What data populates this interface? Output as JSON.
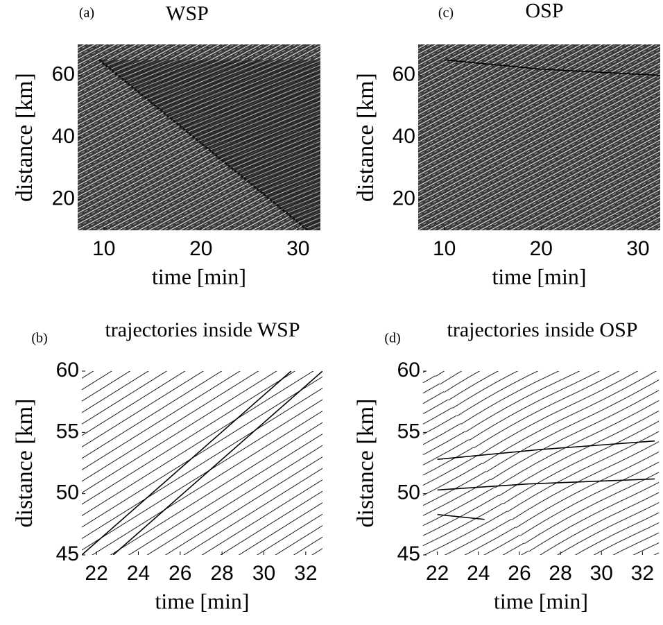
{
  "chart_data": [
    {
      "type": "line",
      "label": "(a)",
      "title": "WSP",
      "xlabel": "time [min]",
      "ylabel": "distance [km]",
      "xlim": [
        7.3,
        32.3
      ],
      "ylim": [
        10,
        70
      ],
      "xticks": [
        10,
        20,
        30
      ],
      "yticks": [
        20,
        40,
        60
      ],
      "series": [
        {
          "color": "#111111",
          "x": [
            9.5,
            31
          ],
          "values": [
            65,
            10
          ]
        }
      ]
    },
    {
      "type": "line",
      "label": "(b)",
      "title": "trajectories inside WSP",
      "xlabel": "time [min]",
      "ylabel": "distance [km]",
      "xlim": [
        21.3,
        32.8
      ],
      "ylim": [
        45,
        60
      ],
      "xticks": [
        22,
        24,
        26,
        28,
        30,
        32
      ],
      "yticks": [
        45,
        50,
        55,
        60
      ],
      "series": [
        {
          "color": "#000000",
          "x": [
            21.3,
            31.3
          ],
          "values": [
            45,
            60
          ]
        },
        {
          "color": "#000000",
          "x": [
            22.8,
            32.8
          ],
          "values": [
            45,
            60
          ]
        }
      ]
    },
    {
      "type": "line",
      "label": "(c)",
      "title": "OSP",
      "xlabel": "time [min]",
      "ylabel": "distance [km]",
      "xlim": [
        7.3,
        32.3
      ],
      "ylim": [
        10,
        70
      ],
      "xticks": [
        10,
        20,
        30
      ],
      "yticks": [
        20,
        40,
        60
      ],
      "series": [
        {
          "color": "#000000",
          "x": [
            10,
            20,
            32.3
          ],
          "values": [
            65,
            62,
            60
          ]
        }
      ]
    },
    {
      "type": "line",
      "label": "(d)",
      "title": "trajectories inside OSP",
      "xlabel": "time [min]",
      "ylabel": "distance [km]",
      "xlim": [
        21.3,
        32.8
      ],
      "ylim": [
        45,
        60
      ],
      "xticks": [
        22,
        24,
        26,
        28,
        30,
        32
      ],
      "yticks": [
        45,
        50,
        55,
        60
      ],
      "series": [
        {
          "color": "#000000",
          "x": [
            22,
            24.3
          ],
          "values": [
            48.3,
            47.9
          ]
        },
        {
          "color": "#000000",
          "x": [
            22,
            26.5,
            32.6
          ],
          "values": [
            50.3,
            50.8,
            51.2
          ]
        },
        {
          "color": "#000000",
          "x": [
            22,
            27,
            32.6
          ],
          "values": [
            52.8,
            53.6,
            54.3
          ]
        }
      ]
    }
  ]
}
